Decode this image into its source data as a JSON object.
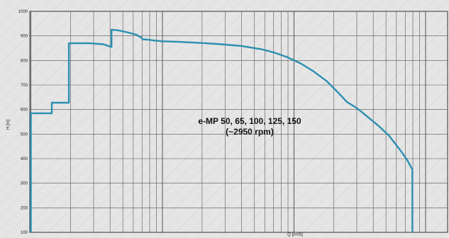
{
  "chart_data": {
    "type": "line",
    "title": "",
    "xlabel": "Q [m³/h]",
    "ylabel": "H [m]",
    "x_scale": "log",
    "ylim": [
      100,
      1000
    ],
    "y_ticks": [
      "100",
      "200",
      "300",
      "400",
      "500",
      "600",
      "700",
      "800",
      "900",
      "1000"
    ],
    "grid": true,
    "annotation_lines": [
      "e-MP 50, 65, 100, 125, 150",
      "(~2950 rpm)"
    ],
    "series": [
      {
        "name": "",
        "color": "#2a8fb0",
        "points": [
          [
            0.0,
            100
          ],
          [
            0.0,
            585
          ],
          [
            0.159,
            585
          ],
          [
            0.159,
            628
          ],
          [
            0.289,
            628
          ],
          [
            0.289,
            870
          ],
          [
            0.45,
            870
          ],
          [
            0.55,
            866
          ],
          [
            0.613,
            855
          ],
          [
            0.613,
            925
          ],
          [
            0.66,
            923
          ],
          [
            0.73,
            915
          ],
          [
            0.8,
            905
          ],
          [
            0.84,
            893
          ],
          [
            0.85,
            886
          ],
          [
            0.9,
            884
          ],
          [
            0.94,
            881
          ],
          [
            1.0,
            878
          ],
          [
            1.05,
            877
          ],
          [
            1.15,
            875
          ],
          [
            1.3,
            871
          ],
          [
            1.45,
            866
          ],
          [
            1.6,
            859
          ],
          [
            1.75,
            846
          ],
          [
            1.85,
            832
          ],
          [
            1.95,
            813
          ],
          [
            2.05,
            788
          ],
          [
            2.15,
            755
          ],
          [
            2.25,
            715
          ],
          [
            2.33,
            672
          ],
          [
            2.4,
            632
          ],
          [
            2.48,
            605
          ],
          [
            2.56,
            570
          ],
          [
            2.64,
            535
          ],
          [
            2.72,
            495
          ],
          [
            2.8,
            440
          ],
          [
            2.86,
            395
          ],
          [
            2.9,
            355
          ],
          [
            2.9,
            100
          ]
        ]
      }
    ]
  }
}
